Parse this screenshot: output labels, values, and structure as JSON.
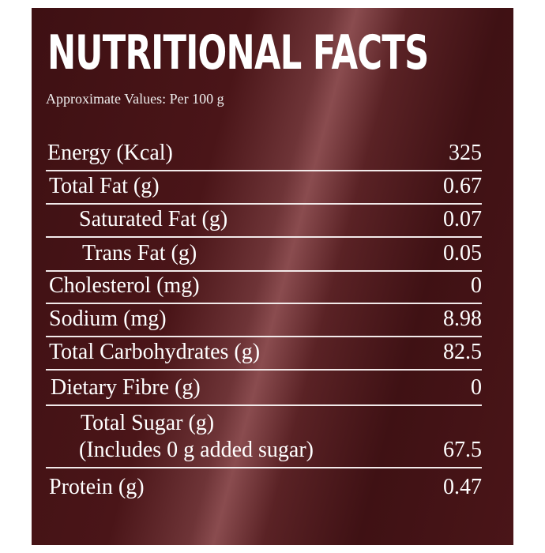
{
  "header": {
    "title": "NUTRITIONAL FACTS",
    "subtitle": "Approximate Values: Per 100 g"
  },
  "table": {
    "rows": [
      {
        "label": "Energy (Kcal)",
        "value": "325"
      },
      {
        "label": "Total Fat (g)",
        "value": "0.67"
      },
      {
        "label": "Saturated Fat (g)",
        "value": "0.07"
      },
      {
        "label": "Trans Fat (g)",
        "value": "0.05"
      },
      {
        "label": "Cholesterol (mg)",
        "value": "0"
      },
      {
        "label": "Sodium (mg)",
        "value": "8.98"
      },
      {
        "label": "Total Carbohydrates (g)",
        "value": "82.5"
      },
      {
        "label": "Dietary Fibre (g)",
        "value": "0"
      },
      {
        "label": "Total Sugar (g)",
        "note": "(Includes 0 g added sugar)",
        "value": "67.5"
      },
      {
        "label": "Protein (g)",
        "value": "0.47"
      }
    ]
  }
}
